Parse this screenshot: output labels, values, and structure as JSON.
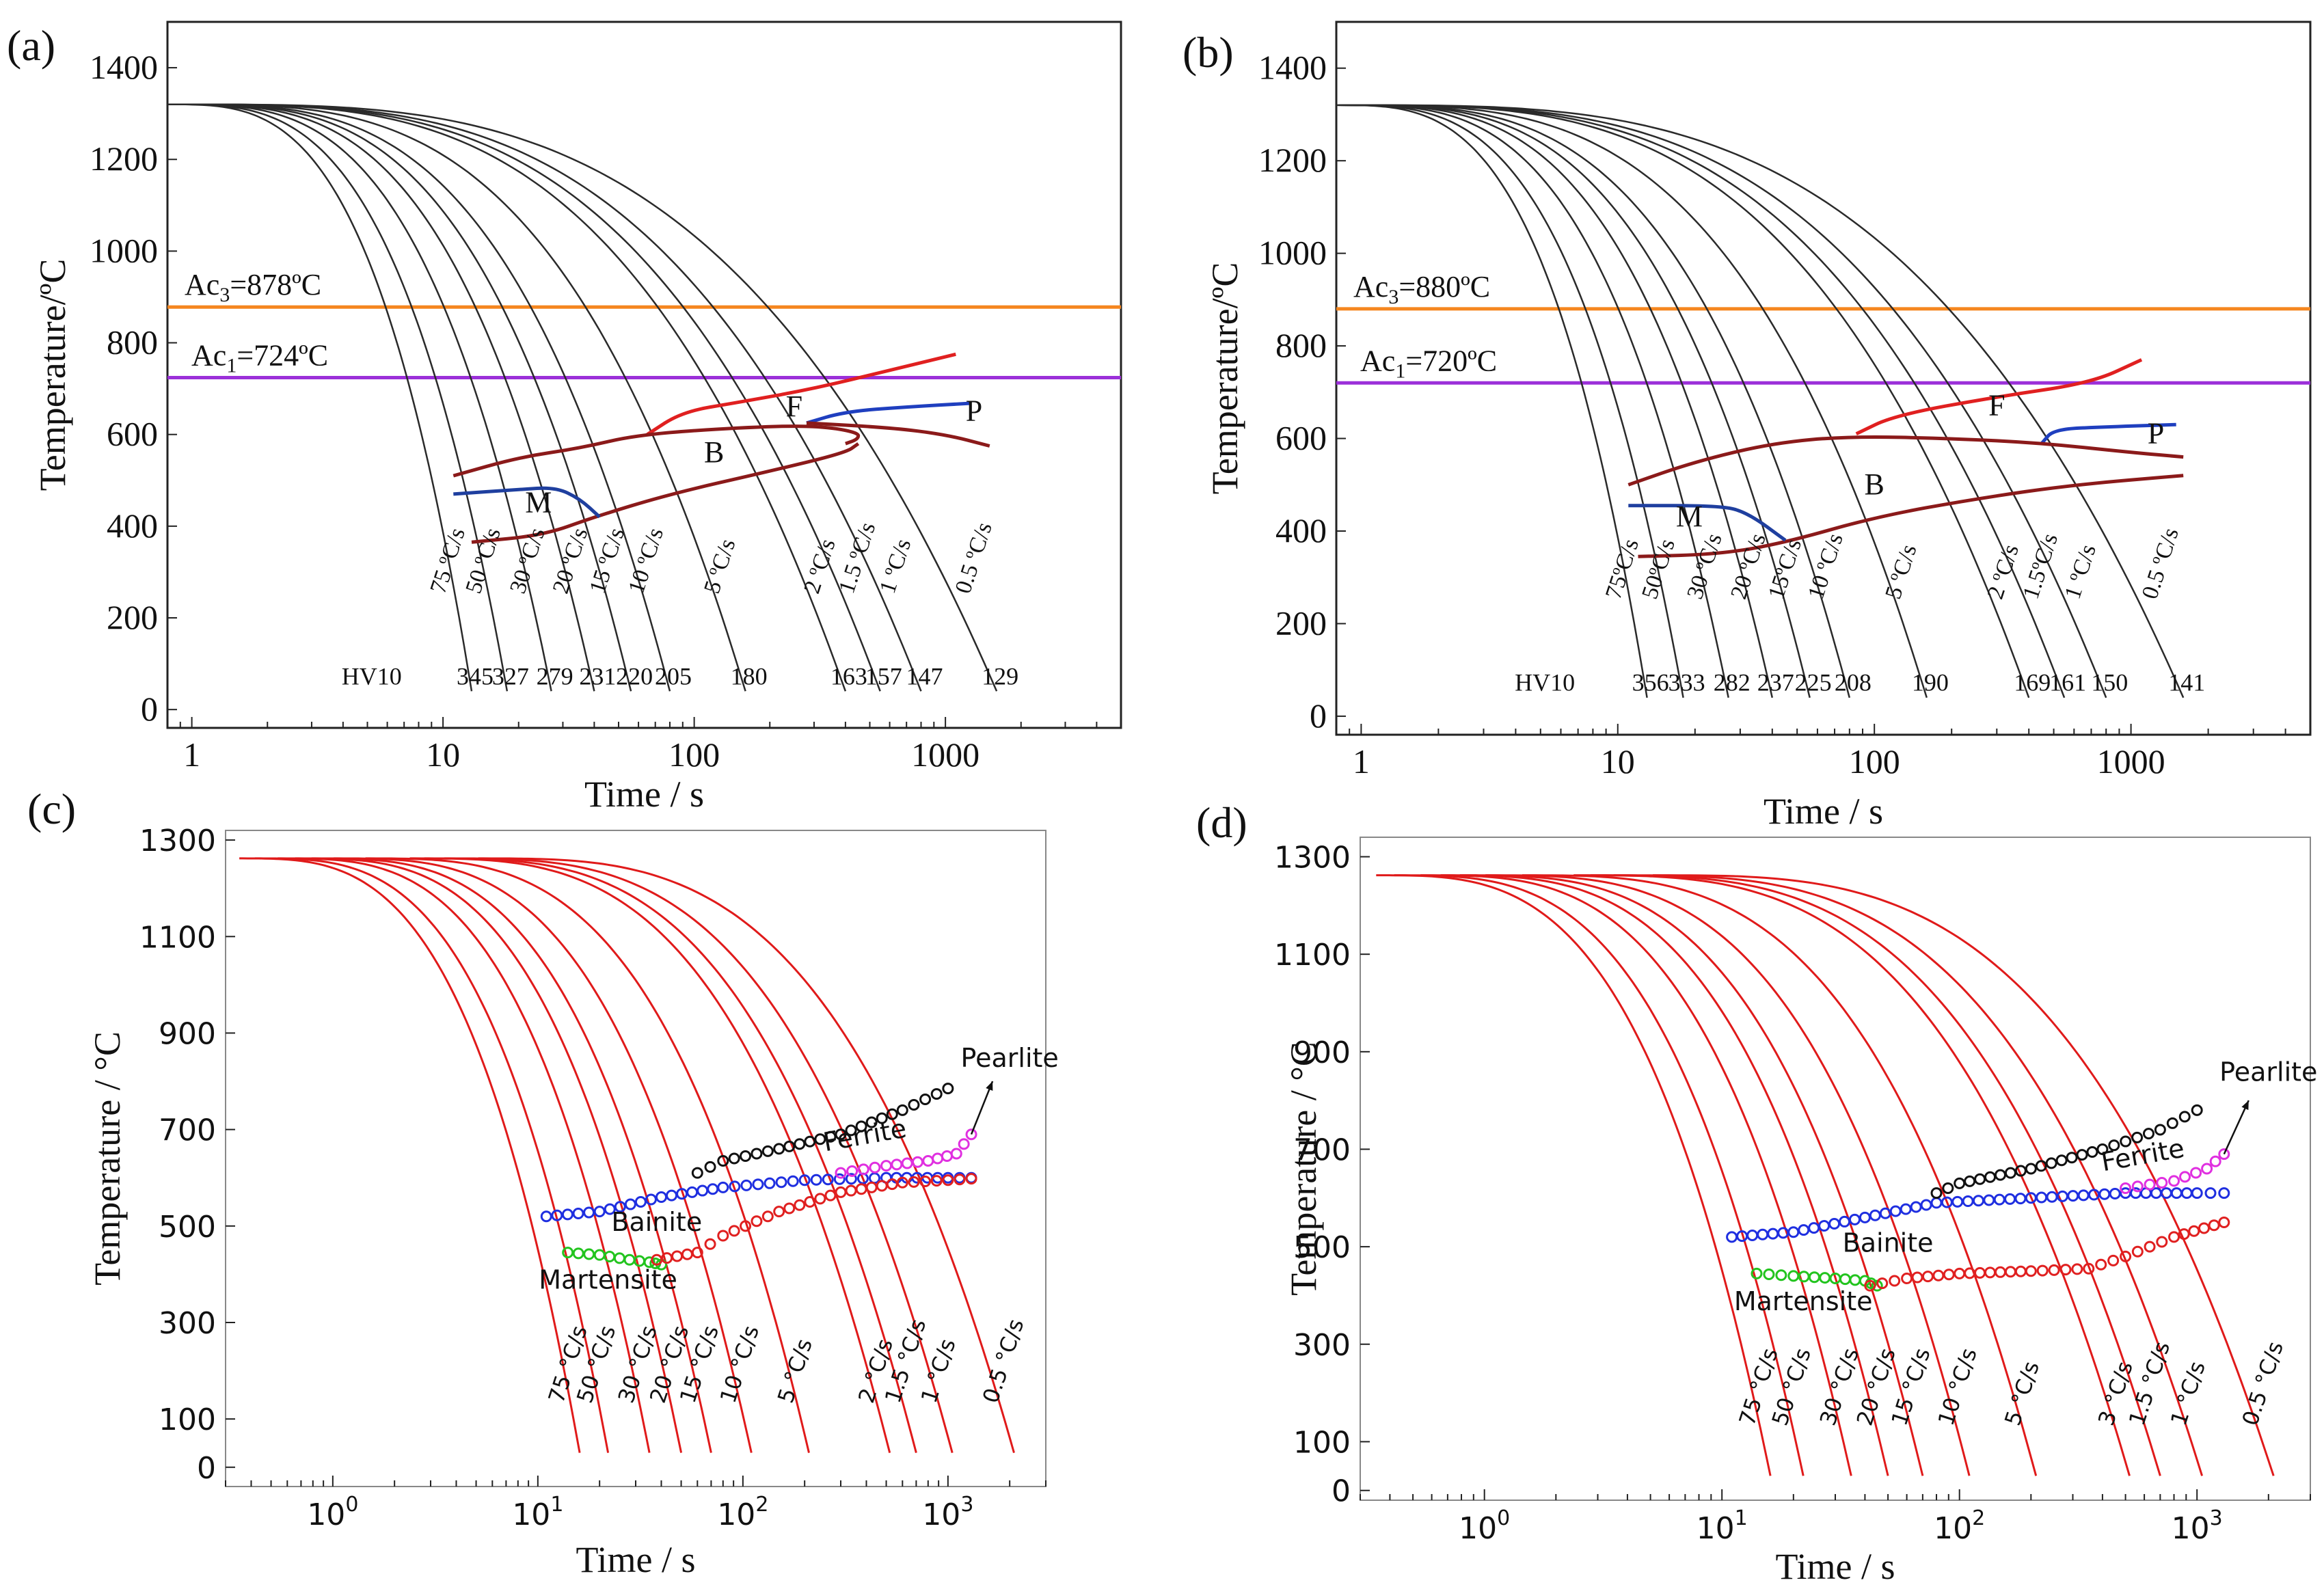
{
  "chart_data": [
    {
      "panel": "(a)",
      "type": "line",
      "style": "experimental",
      "xlabel": "Time / s",
      "ylabel": "Temperature/ºC",
      "xscale": "log",
      "xlim": [
        0.8,
        5000
      ],
      "ylim": [
        -40,
        1500
      ],
      "xticks": [
        {
          "v": 1,
          "t": "1"
        },
        {
          "v": 10,
          "t": "10"
        },
        {
          "v": 100,
          "t": "100"
        },
        {
          "v": 1000,
          "t": "1000"
        }
      ],
      "yticks": [
        0,
        200,
        400,
        600,
        800,
        1000,
        1200,
        1400
      ],
      "ac3": {
        "value": 878,
        "label": "Ac3=878ºC",
        "color": "#f5861f"
      },
      "ac1": {
        "value": 724,
        "label": "Ac1=724ºC",
        "color": "#9b30d9"
      },
      "cooling_curves": [
        {
          "label": "75 ºC/s",
          "t_end": 13,
          "hv": "345"
        },
        {
          "label": "50 ºC/s",
          "t_end": 18,
          "hv": "327"
        },
        {
          "label": "30 ºC/s",
          "t_end": 27,
          "hv": "279"
        },
        {
          "label": "20 ºC/s",
          "t_end": 40,
          "hv": "231"
        },
        {
          "label": "15 ºC/s",
          "t_end": 56,
          "hv": "220"
        },
        {
          "label": "10 ºC/s",
          "t_end": 80,
          "hv": "205"
        },
        {
          "label": "5 ºC/s",
          "t_end": 160,
          "hv": "180"
        },
        {
          "label": "2 ºC/s",
          "t_end": 400,
          "hv": "163"
        },
        {
          "label": "1.5 ºC/s",
          "t_end": 550,
          "hv": "157"
        },
        {
          "label": "1 ºC/s",
          "t_end": 800,
          "hv": "147"
        },
        {
          "label": "0.5 ºC/s",
          "t_end": 1600,
          "hv": "129"
        }
      ],
      "hv_heading": "HV10",
      "phase_lines": [
        {
          "name": "ferrite-start",
          "color": "#e02020",
          "points": [
            [
              65,
              600
            ],
            [
              90,
              650
            ],
            [
              150,
              670
            ],
            [
              300,
              700
            ],
            [
              600,
              740
            ],
            [
              1100,
              775
            ]
          ]
        },
        {
          "name": "pearlite-start",
          "color": "#1f3fbf",
          "points": [
            [
              280,
              625
            ],
            [
              400,
              650
            ],
            [
              700,
              660
            ],
            [
              1250,
              668
            ]
          ]
        },
        {
          "name": "bainite-start",
          "color": "#8b1a1a",
          "points": [
            [
              11,
              510
            ],
            [
              20,
              550
            ],
            [
              35,
              570
            ],
            [
              60,
              600
            ],
            [
              150,
              615
            ],
            [
              300,
              620
            ],
            [
              450,
              605
            ],
            [
              450,
              590
            ],
            [
              400,
              580
            ]
          ]
        },
        {
          "name": "bainite-finish",
          "color": "#8b1a1a",
          "points": [
            [
              13,
              365
            ],
            [
              25,
              380
            ],
            [
              40,
              420
            ],
            [
              80,
              470
            ],
            [
              200,
              520
            ],
            [
              400,
              560
            ],
            [
              450,
              580
            ]
          ]
        },
        {
          "name": "pearlite-finish",
          "color": "#8b1a1a",
          "points": [
            [
              280,
              625
            ],
            [
              600,
              615
            ],
            [
              1000,
              600
            ],
            [
              1500,
              575
            ]
          ]
        },
        {
          "name": "martensite-start",
          "color": "#1f3f9f",
          "points": [
            [
              11,
              470
            ],
            [
              20,
              480
            ],
            [
              28,
              485
            ],
            [
              35,
              460
            ],
            [
              42,
              420
            ]
          ]
        }
      ],
      "phase_labels": [
        {
          "text": "M",
          "x": 24,
          "y": 430
        },
        {
          "text": "B",
          "x": 120,
          "y": 540
        },
        {
          "text": "F",
          "x": 250,
          "y": 640
        },
        {
          "text": "P",
          "x": 1300,
          "y": 630
        }
      ]
    },
    {
      "panel": "(b)",
      "type": "line",
      "style": "experimental",
      "xlabel": "Time / s",
      "ylabel": "Temperature/ºC",
      "xscale": "log",
      "xlim": [
        0.8,
        5000
      ],
      "ylim": [
        -40,
        1500
      ],
      "xticks": [
        {
          "v": 1,
          "t": "1"
        },
        {
          "v": 10,
          "t": "10"
        },
        {
          "v": 100,
          "t": "100"
        },
        {
          "v": 1000,
          "t": "1000"
        }
      ],
      "yticks": [
        0,
        200,
        400,
        600,
        800,
        1000,
        1200,
        1400
      ],
      "ac3": {
        "value": 880,
        "label": "Ac3=880ºC",
        "color": "#f5861f"
      },
      "ac1": {
        "value": 720,
        "label": "Ac1=720ºC",
        "color": "#9b30d9"
      },
      "cooling_curves": [
        {
          "label": "75ºC/s",
          "t_end": 13,
          "hv": "356"
        },
        {
          "label": "50ºC/s",
          "t_end": 18,
          "hv": "333"
        },
        {
          "label": "30 ºC/s",
          "t_end": 27,
          "hv": "282"
        },
        {
          "label": "20 ºC/s",
          "t_end": 40,
          "hv": "237"
        },
        {
          "label": "15ºC/s",
          "t_end": 56,
          "hv": "225"
        },
        {
          "label": "10 ºC/s",
          "t_end": 80,
          "hv": "208"
        },
        {
          "label": "5 ºC/s",
          "t_end": 160,
          "hv": "190"
        },
        {
          "label": "2 ºC/s",
          "t_end": 400,
          "hv": "169"
        },
        {
          "label": "1.5ºC/s",
          "t_end": 550,
          "hv": "161"
        },
        {
          "label": "1 ºC/s",
          "t_end": 800,
          "hv": "150"
        },
        {
          "label": "0.5 ºC/s",
          "t_end": 1600,
          "hv": "141"
        }
      ],
      "hv_heading": "HV10",
      "phase_lines": [
        {
          "name": "ferrite-start",
          "color": "#e02020",
          "points": [
            [
              85,
              610
            ],
            [
              120,
              650
            ],
            [
              300,
              690
            ],
            [
              700,
              720
            ],
            [
              1100,
              770
            ]
          ]
        },
        {
          "name": "pearlite-start",
          "color": "#1f3fbf",
          "points": [
            [
              450,
              590
            ],
            [
              500,
              620
            ],
            [
              800,
              625
            ],
            [
              1500,
              630
            ]
          ]
        },
        {
          "name": "bainite-start",
          "color": "#8b1a1a",
          "points": [
            [
              11,
              500
            ],
            [
              20,
              550
            ],
            [
              40,
              590
            ],
            [
              80,
              605
            ],
            [
              200,
              600
            ],
            [
              450,
              590
            ],
            [
              1000,
              570
            ],
            [
              1600,
              560
            ]
          ]
        },
        {
          "name": "bainite-finish",
          "color": "#8b1a1a",
          "points": [
            [
              12,
              345
            ],
            [
              25,
              350
            ],
            [
              45,
              375
            ],
            [
              100,
              430
            ],
            [
              250,
              470
            ],
            [
              600,
              500
            ],
            [
              1600,
              520
            ]
          ]
        },
        {
          "name": "martensite-start",
          "color": "#1f3f9f",
          "points": [
            [
              11,
              455
            ],
            [
              25,
              455
            ],
            [
              32,
              440
            ],
            [
              45,
              380
            ]
          ]
        }
      ],
      "phase_labels": [
        {
          "text": "M",
          "x": 19,
          "y": 410
        },
        {
          "text": "B",
          "x": 100,
          "y": 480
        },
        {
          "text": "F",
          "x": 300,
          "y": 650
        },
        {
          "text": "P",
          "x": 1250,
          "y": 590
        }
      ]
    },
    {
      "panel": "(c)",
      "type": "line",
      "style": "simulated",
      "xlabel": "Time / s",
      "ylabel": "Temperature / °C",
      "xscale": "log",
      "xlim": [
        0.3,
        3000
      ],
      "ylim": [
        -40,
        1320
      ],
      "xticks": [
        {
          "v": 1,
          "t": "10^0"
        },
        {
          "v": 10,
          "t": "10^1"
        },
        {
          "v": 100,
          "t": "10^2"
        },
        {
          "v": 1000,
          "t": "10^3"
        }
      ],
      "yticks": [
        0,
        100,
        300,
        500,
        700,
        900,
        1100,
        1300
      ],
      "cooling_curves": [
        {
          "label": "75 °C/s",
          "t_end": 16
        },
        {
          "label": "50 °C/s",
          "t_end": 22
        },
        {
          "label": "30 °C/s",
          "t_end": 35
        },
        {
          "label": "20 °C/s",
          "t_end": 50
        },
        {
          "label": "15 °C/s",
          "t_end": 70
        },
        {
          "label": "10 °C/s",
          "t_end": 110
        },
        {
          "label": "5 °C/s",
          "t_end": 210
        },
        {
          "label": "2 °C/s",
          "t_end": 520
        },
        {
          "label": "1.5 °C/s",
          "t_end": 700
        },
        {
          "label": "1 °C/s",
          "t_end": 1050
        },
        {
          "label": "0.5 °C/s",
          "t_end": 2100
        }
      ],
      "phase_series": [
        {
          "name": "Martensite",
          "color": "#22c41e",
          "points": [
            [
              14,
              445
            ],
            [
              20,
              440
            ],
            [
              28,
              430
            ],
            [
              35,
              425
            ],
            [
              40,
              420
            ]
          ]
        },
        {
          "name": "Bainite",
          "color": "#1f2fe0",
          "points": [
            [
              11,
              520
            ],
            [
              20,
              530
            ],
            [
              40,
              560
            ],
            [
              80,
              580
            ],
            [
              200,
              595
            ],
            [
              500,
              600
            ],
            [
              1000,
              600
            ],
            [
              1300,
              600
            ]
          ]
        },
        {
          "name": "Bainite-finish",
          "color": "#e02020",
          "points": [
            [
              38,
              430
            ],
            [
              60,
              445
            ],
            [
              80,
              480
            ],
            [
              150,
              530
            ],
            [
              300,
              570
            ],
            [
              600,
              590
            ],
            [
              1000,
              595
            ],
            [
              1300,
              598
            ]
          ]
        },
        {
          "name": "Ferrite",
          "color": "#e030e0",
          "points": [
            [
              300,
              610
            ],
            [
              500,
              625
            ],
            [
              800,
              635
            ],
            [
              1100,
              650
            ],
            [
              1300,
              690
            ]
          ]
        },
        {
          "name": "Pearlite",
          "color": "#111111",
          "points": [
            [
              60,
              610
            ],
            [
              80,
              635
            ],
            [
              150,
              660
            ],
            [
              300,
              690
            ],
            [
              600,
              740
            ],
            [
              1000,
              785
            ]
          ]
        }
      ],
      "phase_labels": [
        {
          "text": "Martensite",
          "x": 22,
          "y": 370
        },
        {
          "text": "Bainite",
          "x": 38,
          "y": 490
        },
        {
          "text": "Ferrite",
          "x": 400,
          "y": 670
        },
        {
          "text": "Pearlite",
          "x": 2000,
          "y": 830
        }
      ]
    },
    {
      "panel": "(d)",
      "type": "line",
      "style": "simulated",
      "xlabel": "Time / s",
      "ylabel": "Temperature / °C",
      "xscale": "log",
      "xlim": [
        0.3,
        3000
      ],
      "ylim": [
        -20,
        1340
      ],
      "xticks": [
        {
          "v": 1,
          "t": "10^0"
        },
        {
          "v": 10,
          "t": "10^1"
        },
        {
          "v": 100,
          "t": "10^2"
        },
        {
          "v": 1000,
          "t": "10^3"
        }
      ],
      "yticks": [
        0,
        100,
        300,
        500,
        700,
        900,
        1100,
        1300
      ],
      "cooling_curves": [
        {
          "label": "75 °C/s",
          "t_end": 16
        },
        {
          "label": "50 °C/s",
          "t_end": 22
        },
        {
          "label": "30 °C/s",
          "t_end": 35
        },
        {
          "label": "20 °C/s",
          "t_end": 50
        },
        {
          "label": "15 °C/s",
          "t_end": 70
        },
        {
          "label": "10 °C/s",
          "t_end": 110
        },
        {
          "label": "5 °C/s",
          "t_end": 210
        },
        {
          "label": "3 °C/s",
          "t_end": 520
        },
        {
          "label": "1.5 °C/s",
          "t_end": 700
        },
        {
          "label": "1 °C/s",
          "t_end": 1050
        },
        {
          "label": "0.5 °C/s",
          "t_end": 2100
        }
      ],
      "phase_series": [
        {
          "name": "Martensite",
          "color": "#22c41e",
          "points": [
            [
              14,
              445
            ],
            [
              20,
              440
            ],
            [
              30,
              435
            ],
            [
              40,
              430
            ],
            [
              45,
              420
            ]
          ]
        },
        {
          "name": "Bainite",
          "color": "#1f2fe0",
          "points": [
            [
              11,
              520
            ],
            [
              20,
              530
            ],
            [
              40,
              560
            ],
            [
              80,
              590
            ],
            [
              200,
              600
            ],
            [
              500,
              610
            ],
            [
              1000,
              610
            ],
            [
              1300,
              610
            ]
          ]
        },
        {
          "name": "Bainite-finish",
          "color": "#e02020",
          "points": [
            [
              42,
              420
            ],
            [
              60,
              435
            ],
            [
              100,
              445
            ],
            [
              200,
              450
            ],
            [
              350,
              455
            ],
            [
              500,
              480
            ],
            [
              800,
              520
            ],
            [
              1300,
              550
            ]
          ]
        },
        {
          "name": "Ferrite",
          "color": "#e030e0",
          "points": [
            [
              500,
              620
            ],
            [
              800,
              635
            ],
            [
              1100,
              660
            ],
            [
              1300,
              690
            ]
          ]
        },
        {
          "name": "Pearlite",
          "color": "#111111",
          "points": [
            [
              80,
              610
            ],
            [
              100,
              630
            ],
            [
              200,
              660
            ],
            [
              400,
              700
            ],
            [
              700,
              740
            ],
            [
              1000,
              780
            ]
          ]
        }
      ],
      "phase_labels": [
        {
          "text": "Martensite",
          "x": 22,
          "y": 370
        },
        {
          "text": "Bainite",
          "x": 50,
          "y": 490
        },
        {
          "text": "Ferrite",
          "x": 600,
          "y": 670
        },
        {
          "text": "Pearlite",
          "x": 2000,
          "y": 840
        }
      ]
    }
  ]
}
